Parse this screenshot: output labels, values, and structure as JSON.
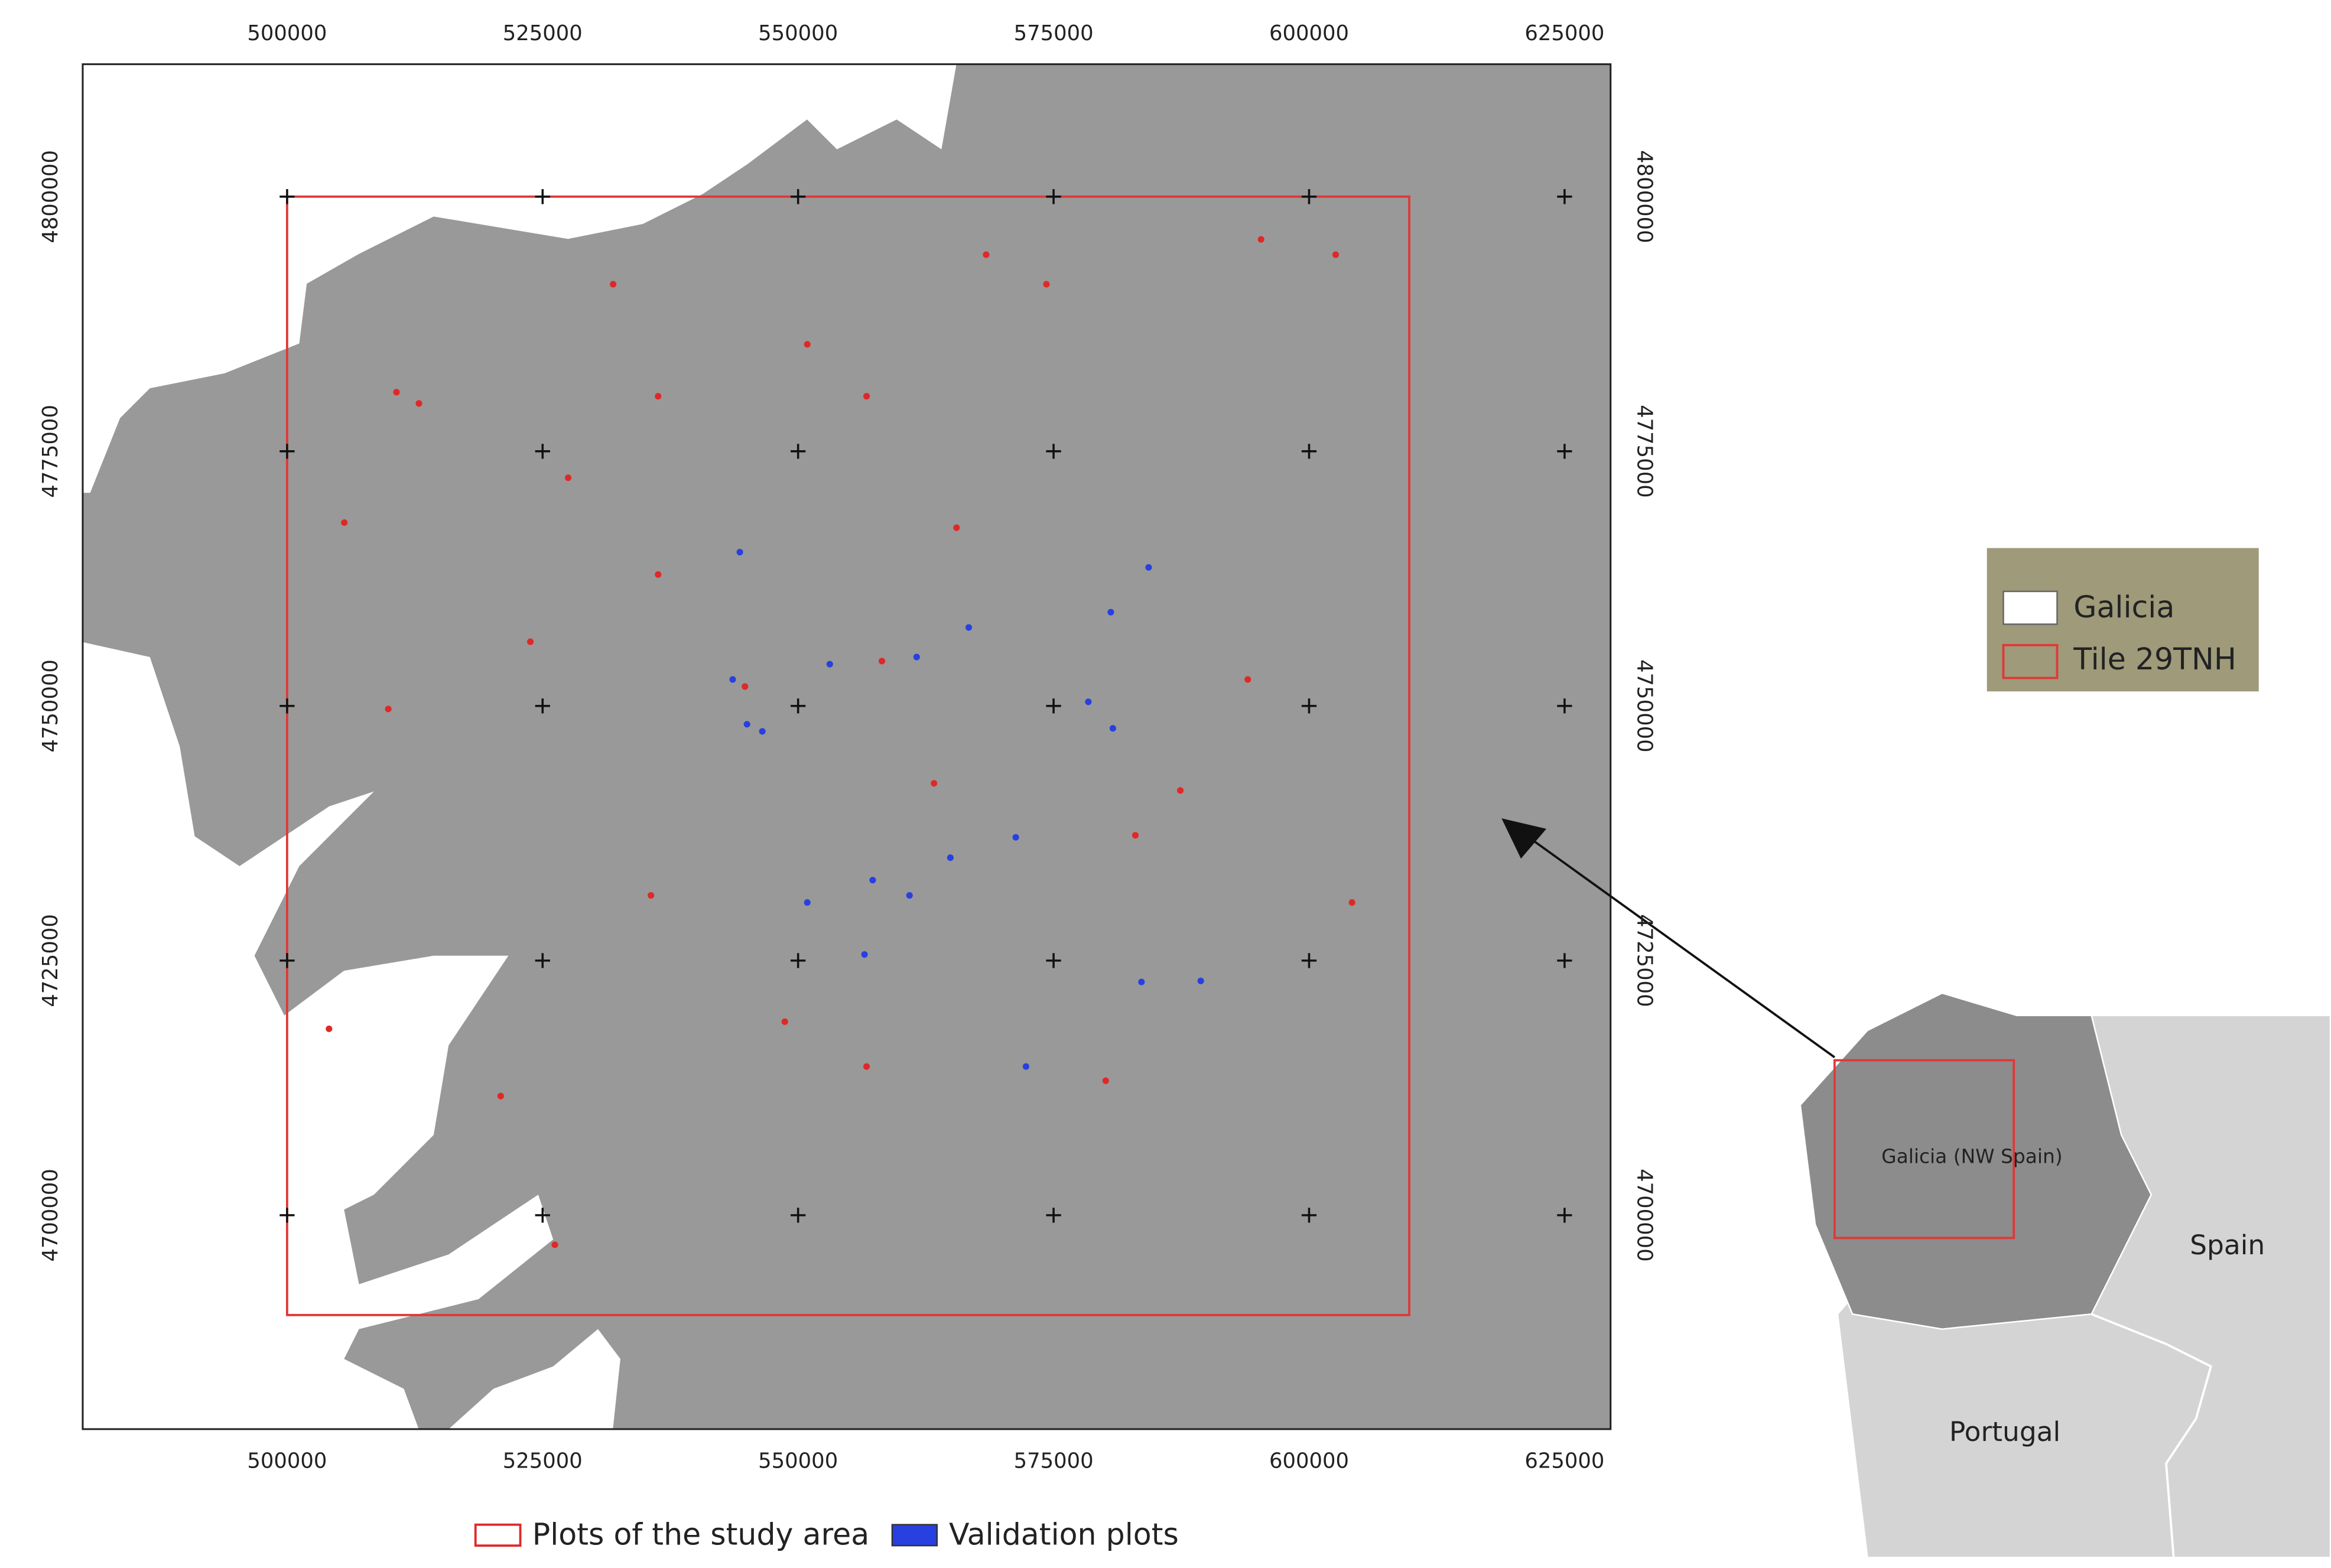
{
  "map": {
    "xlim": [
      480000,
      629500
    ],
    "ylim": [
      4679000,
      4813000
    ],
    "xticks": [
      500000,
      525000,
      550000,
      575000,
      600000,
      625000
    ],
    "yticks": [
      4700000,
      4725000,
      4750000,
      4775000,
      4800000
    ],
    "tile": {
      "name": "Tile 29TNH",
      "color": "#e03838",
      "extent": [
        500000,
        609800,
        4690200,
        4800000
      ]
    },
    "region": {
      "name": "Galicia",
      "color": "#999999"
    },
    "series": [
      {
        "name": "Plots of the study area",
        "color": "#e02828",
        "x": [
          510700,
          512900,
          536300,
          550900,
          556700,
          574300,
          568400,
          531900,
          523800,
          536300,
          505600,
          527500,
          509900,
          563300,
          535600,
          520900,
          548700,
          556700,
          580100,
          587400,
          594000,
          604200,
          565500,
          558200,
          504100,
          583000,
          595300,
          602600,
          544800,
          526200
        ],
        "y": [
          4780800,
          4779700,
          4780400,
          4785500,
          4780400,
          4791400,
          4794300,
          4791400,
          4756300,
          4762900,
          4768000,
          4772400,
          4749700,
          4742400,
          4731400,
          4711700,
          4719000,
          4714600,
          4713200,
          4741700,
          4752600,
          4730700,
          4767500,
          4754400,
          4718300,
          4737300,
          4795800,
          4794300,
          4751900,
          4697100
        ]
      },
      {
        "name": "Validation plots",
        "color": "#2840e0",
        "x": [
          544300,
          545000,
          546500,
          543600,
          561600,
          566700,
          578400,
          580600,
          584300,
          557300,
          560900,
          556500,
          583600,
          589400,
          571300,
          580800,
          550900,
          564900,
          572300,
          553100
        ],
        "y": [
          4765100,
          4748200,
          4747500,
          4752600,
          4754800,
          4757700,
          4750400,
          4759200,
          4763600,
          4732900,
          4731400,
          4725600,
          4722900,
          4723000,
          4737100,
          4747800,
          4730700,
          4735100,
          4714600,
          4754100
        ]
      }
    ],
    "inset": {
      "labels": [
        "Galicia (NW Spain)",
        "Spain",
        "Portugal"
      ]
    }
  }
}
